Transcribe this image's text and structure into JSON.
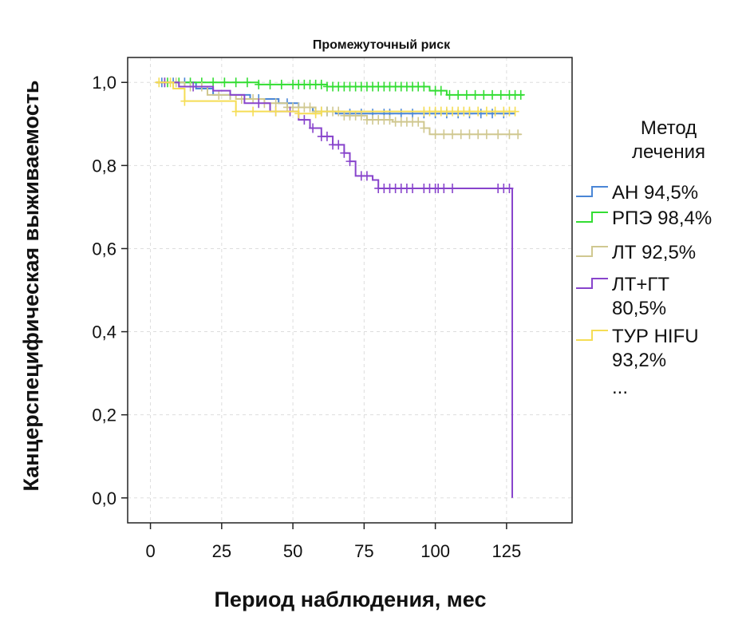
{
  "chart_data": {
    "type": "line",
    "title": "Промежуточный риск",
    "xlabel": "Период наблюдения, мес",
    "ylabel": "Канцерспецифическая выживаемость",
    "xlim": [
      -8,
      148
    ],
    "ylim": [
      -0.06,
      1.06
    ],
    "xticks": [
      0,
      25,
      50,
      75,
      100,
      125
    ],
    "xtick_labels": [
      "0",
      "25",
      "50",
      "75",
      "100",
      "125"
    ],
    "yticks": [
      0.0,
      0.2,
      0.4,
      0.6,
      0.8,
      1.0
    ],
    "ytick_labels": [
      "0,0",
      "0,2",
      "0,4",
      "0,6",
      "0,8",
      "1,0"
    ],
    "grid": true,
    "legend_title": "Метод лечения",
    "legend_more": "...",
    "series": [
      {
        "name": "АН 94,5%",
        "label_lines": [
          "АН 94,5%"
        ],
        "color": "#4a86d6",
        "steps": [
          [
            2,
            1.0
          ],
          [
            16,
            0.985
          ],
          [
            22,
            0.97
          ],
          [
            35,
            0.96
          ],
          [
            45,
            0.95
          ],
          [
            52,
            0.94
          ],
          [
            57,
            0.93
          ],
          [
            65,
            0.925
          ],
          [
            128,
            0.925
          ]
        ],
        "censors": [
          4,
          8,
          12,
          28,
          38,
          48,
          60,
          62,
          70,
          74,
          78,
          82,
          84,
          88,
          92,
          96,
          100,
          104,
          108,
          112,
          116,
          120,
          124
        ]
      },
      {
        "name": "РПЭ 98,4%",
        "label_lines": [
          "РПЭ 98,4%"
        ],
        "color": "#33dd33",
        "steps": [
          [
            2,
            1.0
          ],
          [
            38,
            0.995
          ],
          [
            62,
            0.99
          ],
          [
            98,
            0.98
          ],
          [
            104,
            0.97
          ],
          [
            131,
            0.97
          ]
        ],
        "censors": [
          6,
          10,
          14,
          18,
          22,
          26,
          30,
          34,
          38,
          42,
          46,
          50,
          52,
          54,
          56,
          58,
          60,
          62,
          64,
          66,
          68,
          70,
          72,
          74,
          76,
          78,
          80,
          82,
          84,
          86,
          88,
          90,
          92,
          94,
          96,
          100,
          102,
          105,
          108,
          111,
          114,
          117,
          120,
          123,
          126,
          128,
          130
        ]
      },
      {
        "name": "ЛТ 92,5%",
        "label_lines": [
          "ЛТ 92,5%"
        ],
        "color": "#d0c890",
        "steps": [
          [
            2,
            1.0
          ],
          [
            12,
            0.99
          ],
          [
            20,
            0.97
          ],
          [
            30,
            0.96
          ],
          [
            40,
            0.95
          ],
          [
            48,
            0.94
          ],
          [
            58,
            0.93
          ],
          [
            68,
            0.92
          ],
          [
            76,
            0.91
          ],
          [
            85,
            0.905
          ],
          [
            96,
            0.89
          ],
          [
            98,
            0.875
          ],
          [
            130,
            0.875
          ]
        ],
        "censors": [
          5,
          9,
          14,
          18,
          24,
          28,
          32,
          36,
          40,
          44,
          48,
          50,
          52,
          54,
          56,
          58,
          60,
          62,
          64,
          66,
          68,
          70,
          72,
          74,
          76,
          78,
          80,
          82,
          84,
          86,
          88,
          90,
          92,
          94,
          96,
          100,
          103,
          106,
          109,
          112,
          115,
          118,
          122,
          126,
          129
        ]
      },
      {
        "name": "ЛТ+ГТ 80,5%",
        "label_lines": [
          "ЛТ+ГТ",
          "80,5%"
        ],
        "color": "#8844cc",
        "steps": [
          [
            2,
            1.0
          ],
          [
            10,
            0.99
          ],
          [
            22,
            0.98
          ],
          [
            28,
            0.97
          ],
          [
            33,
            0.95
          ],
          [
            42,
            0.93
          ],
          [
            52,
            0.91
          ],
          [
            56,
            0.89
          ],
          [
            60,
            0.87
          ],
          [
            64,
            0.85
          ],
          [
            68,
            0.83
          ],
          [
            70,
            0.81
          ],
          [
            72,
            0.775
          ],
          [
            78,
            0.765
          ],
          [
            80,
            0.745
          ],
          [
            127,
            0.745
          ],
          [
            127,
            0.0
          ]
        ],
        "censors": [
          5,
          15,
          38,
          44,
          49,
          54,
          57,
          60,
          62,
          64,
          66,
          68,
          70,
          74,
          76,
          80,
          82,
          84,
          86,
          88,
          90,
          92,
          96,
          98,
          100,
          101,
          103,
          106,
          122,
          124,
          126
        ]
      },
      {
        "name": "ТУР HIFU 93,2%",
        "label_lines": [
          "ТУР HIFU",
          "93,2%"
        ],
        "color": "#f5dd55",
        "steps": [
          [
            2,
            1.0
          ],
          [
            8,
            0.985
          ],
          [
            12,
            0.955
          ],
          [
            30,
            0.93
          ],
          [
            52,
            0.925
          ],
          [
            60,
            0.93
          ],
          [
            128,
            0.93
          ]
        ],
        "censors": [
          3,
          7,
          12,
          30,
          36,
          44,
          52,
          58,
          60,
          96,
          98,
          100,
          102,
          104,
          106,
          108,
          110,
          112,
          115,
          118,
          121,
          124,
          126,
          128
        ]
      }
    ]
  }
}
